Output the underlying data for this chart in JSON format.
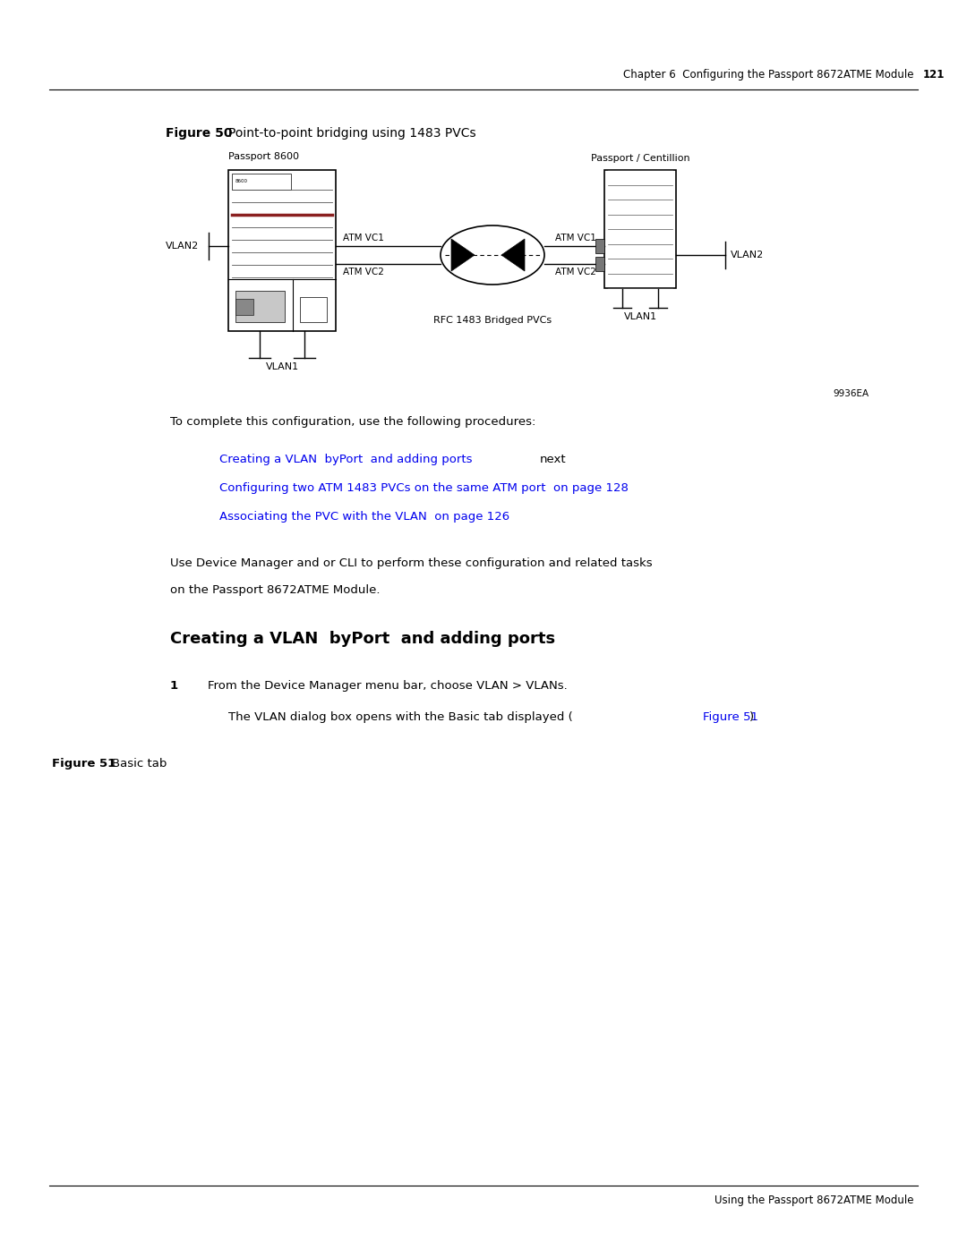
{
  "bg_color": "#ffffff",
  "page_width": 10.8,
  "page_height": 13.97,
  "header_text": "Chapter 6  Configuring the Passport 8672ATME Module",
  "header_page": "121",
  "figure50_label": "Figure 50",
  "figure50_title": "Point-to-point bridging using 1483 PVCs",
  "figure51_label": "Figure 51",
  "figure51_title": "Basic tab",
  "diagram_label_passport8600": "Passport 8600",
  "diagram_label_passport_centillion": "Passport / Centillion",
  "diagram_vlan2_left": "VLAN2",
  "diagram_vlan1_left": "VLAN1",
  "diagram_vlan2_right": "VLAN2",
  "diagram_vlan1_right": "VLAN1",
  "diagram_atm_vc1_left": "ATM VC1",
  "diagram_atm_vc2_left": "ATM VC2",
  "diagram_atm_vc1_right": "ATM VC1",
  "diagram_atm_vc2_right": "ATM VC2",
  "diagram_rfc_label": "RFC 1483 Bridged PVCs",
  "diagram_code": "9936EA",
  "body_text1": "To complete this configuration, use the following procedures:",
  "link1_blue": "Creating a VLAN  byPort  and adding ports",
  "link1_black": "next",
  "link2": "Configuring two ATM 1483 PVCs on the same ATM port  on page 128",
  "link3": "Associating the PVC with the VLAN  on page 126",
  "body_text2a": "Use Device Manager and or CLI to perform these configuration and related tasks",
  "body_text2b": "on the Passport 8672ATME Module.",
  "section_heading": "Creating a VLAN  byPort  and adding ports",
  "step1_num": "1",
  "step1_text": "From the Device Manager menu bar, choose VLAN > VLANs.",
  "step1_sub_prefix": "The VLAN dialog box opens with the Basic tab displayed (",
  "step1_sub_link": "Figure 51",
  "step1_sub_suffix": ").",
  "footer_text": "Using the Passport 8672ATME Module",
  "blue_color": "#0000EE",
  "black_color": "#000000",
  "font_body": 9.5,
  "font_small": 7.5,
  "font_label": 8.0,
  "font_header": 8.5,
  "font_section": 13.0
}
